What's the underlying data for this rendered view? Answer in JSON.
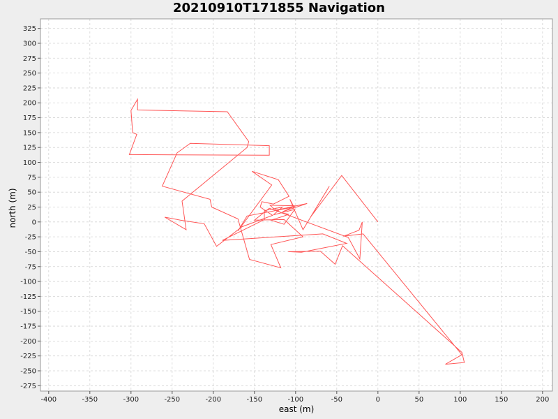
{
  "chart_data": {
    "type": "line",
    "title": "20210910T171855 Navigation",
    "xlabel": "east (m)",
    "ylabel": "north (m)",
    "xlim": [
      -410,
      212
    ],
    "ylim": [
      -284,
      341
    ],
    "grid": true,
    "legend": "none",
    "xticks": [
      -400,
      -350,
      -300,
      -250,
      -200,
      -150,
      -100,
      -50,
      0,
      50,
      100,
      150,
      200
    ],
    "yticks": [
      325,
      300,
      275,
      250,
      225,
      200,
      175,
      150,
      125,
      100,
      75,
      50,
      25,
      0,
      -25,
      -50,
      -75,
      -100,
      -125,
      -150,
      -175,
      -200,
      -225,
      -250,
      -275
    ],
    "series": [
      {
        "color": "#ff5555",
        "x": [
          0,
          -44,
          -82,
          -59,
          -91,
          -107,
          -102,
          -159,
          -170,
          -129,
          -153,
          -121,
          -108,
          -127,
          -141,
          -143,
          -128,
          -165,
          -196,
          -211,
          -240,
          -259,
          -233,
          -238,
          -159,
          -157,
          -183,
          -292,
          -292,
          -300,
          -298,
          -293,
          -302,
          -132,
          -132,
          -228,
          -244,
          -262,
          -204,
          -202,
          -170,
          -156,
          -118,
          -130,
          -91,
          -114,
          -150,
          -132,
          -36,
          -22,
          -19,
          -23,
          -42,
          -18,
          102,
          82,
          105,
          102,
          -43,
          -52,
          -70,
          -109,
          -93,
          -38,
          -67,
          -189,
          -138,
          -138,
          -116,
          -127,
          -101,
          -114,
          -130,
          -116,
          -108,
          -117,
          -127,
          -131,
          -100,
          -116,
          -86,
          -113,
          -124
        ],
        "y": [
          0,
          78,
          8,
          60,
          -13,
          38,
          25,
          10,
          -15,
          62,
          85,
          71,
          43,
          30,
          34,
          25,
          11,
          -8,
          -41,
          -3,
          3,
          8,
          -13,
          35,
          125,
          135,
          185,
          188,
          206,
          187,
          150,
          147,
          113,
          112,
          128,
          132,
          116,
          60,
          38,
          25,
          5,
          -63,
          -77,
          -38,
          -25,
          4,
          3,
          23,
          -26,
          -62,
          0,
          -14,
          -24,
          -20,
          -223,
          -239,
          -236,
          -219,
          -40,
          -71,
          -49,
          -50,
          -51,
          -36,
          -20,
          -31,
          4,
          19,
          25,
          12,
          21,
          -4,
          3,
          9,
          13,
          15,
          23,
          28,
          27,
          17,
          31,
          23,
          20
        ]
      }
    ]
  }
}
